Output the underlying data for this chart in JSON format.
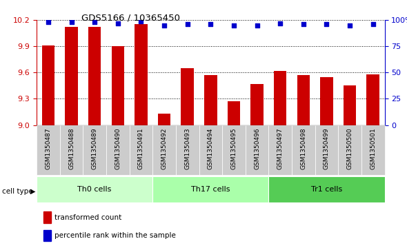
{
  "title": "GDS5166 / 10365450",
  "samples": [
    "GSM1350487",
    "GSM1350488",
    "GSM1350489",
    "GSM1350490",
    "GSM1350491",
    "GSM1350492",
    "GSM1350493",
    "GSM1350494",
    "GSM1350495",
    "GSM1350496",
    "GSM1350497",
    "GSM1350498",
    "GSM1350499",
    "GSM1350500",
    "GSM1350501"
  ],
  "bar_values": [
    9.91,
    10.12,
    10.12,
    9.9,
    10.15,
    9.13,
    9.65,
    9.57,
    9.27,
    9.47,
    9.62,
    9.57,
    9.55,
    9.45,
    9.58
  ],
  "percentile_values": [
    98,
    98,
    98,
    97,
    99,
    95,
    96,
    96,
    95,
    95,
    97,
    96,
    96,
    95,
    96
  ],
  "ylim_left": [
    9.0,
    10.2
  ],
  "ylim_right": [
    0,
    100
  ],
  "yticks_left": [
    9.0,
    9.3,
    9.6,
    9.9,
    10.2
  ],
  "yticks_right": [
    0,
    25,
    50,
    75,
    100
  ],
  "bar_color": "#cc0000",
  "dot_color": "#0000cc",
  "cell_groups": [
    {
      "label": "Th0 cells",
      "start": 0,
      "end": 5,
      "color": "#ccffcc"
    },
    {
      "label": "Th17 cells",
      "start": 5,
      "end": 10,
      "color": "#aaffaa"
    },
    {
      "label": "Tr1 cells",
      "start": 10,
      "end": 15,
      "color": "#55cc55"
    }
  ],
  "left_tick_color": "#cc0000",
  "right_tick_color": "#0000cc",
  "legend_items": [
    {
      "label": "transformed count",
      "color": "#cc0000"
    },
    {
      "label": "percentile rank within the sample",
      "color": "#0000cc"
    }
  ]
}
